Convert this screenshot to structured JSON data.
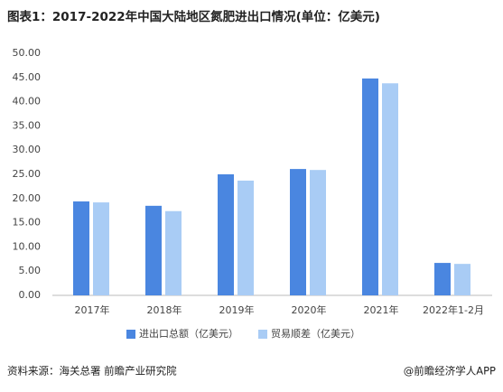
{
  "chart_data": {
    "type": "bar",
    "title": "图表1：2017-2022年中国大陆地区氮肥进出口情况(单位：亿美元)",
    "categories": [
      "2017年",
      "2018年",
      "2019年",
      "2020年",
      "2021年",
      "2022年1-2月"
    ],
    "series": [
      {
        "name": "进出口总额（亿美元）",
        "color": "#4a86e0",
        "values": [
          19.4,
          18.5,
          25.0,
          26.1,
          44.8,
          6.7
        ]
      },
      {
        "name": "贸易顺差（亿美元）",
        "color": "#a9ccf5",
        "values": [
          19.2,
          17.4,
          23.7,
          25.9,
          43.8,
          6.5
        ]
      }
    ],
    "ylim": [
      0,
      50
    ],
    "yticks": [
      {
        "value": 0,
        "label": "0.00"
      },
      {
        "value": 5,
        "label": "5.00"
      },
      {
        "value": 10,
        "label": "10.00"
      },
      {
        "value": 15,
        "label": "15.00"
      },
      {
        "value": 20,
        "label": "20.00"
      },
      {
        "value": 25,
        "label": "25.00"
      },
      {
        "value": 30,
        "label": "30.00"
      },
      {
        "value": 35,
        "label": "35.00"
      },
      {
        "value": 40,
        "label": "40.00"
      },
      {
        "value": 45,
        "label": "45.00"
      },
      {
        "value": 50,
        "label": "50.00"
      }
    ],
    "grid": false,
    "legend": "bottom",
    "source": "资料来源：海关总署 前瞻产业研究院",
    "credit": "@前瞻经济学人APP"
  }
}
